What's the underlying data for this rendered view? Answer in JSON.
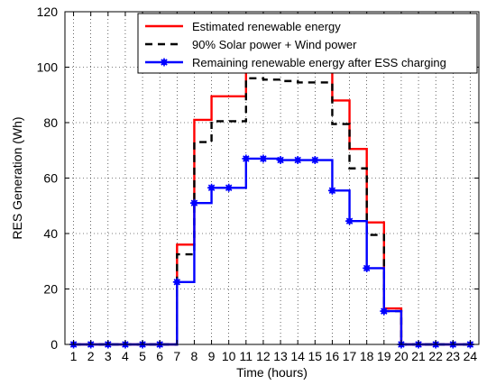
{
  "chart_data": {
    "type": "line",
    "step": "post",
    "xlabel": "Time (hours)",
    "ylabel": "RES Generation (Wh)",
    "xlim": [
      0.5,
      24.5
    ],
    "ylim": [
      0,
      120
    ],
    "x_ticks": [
      1,
      2,
      3,
      4,
      5,
      6,
      7,
      8,
      9,
      10,
      11,
      12,
      13,
      14,
      15,
      16,
      17,
      18,
      19,
      20,
      21,
      22,
      23,
      24
    ],
    "y_ticks": [
      0,
      20,
      40,
      60,
      80,
      100,
      120
    ],
    "grid": true,
    "grid_style": "dotted",
    "legend_position": "top-right",
    "x": [
      1,
      2,
      3,
      4,
      5,
      6,
      7,
      8,
      9,
      10,
      11,
      12,
      13,
      14,
      15,
      16,
      17,
      18,
      19,
      20,
      21,
      22,
      23,
      24
    ],
    "series": [
      {
        "name": "Estimated renewable energy",
        "color": "#ff0000",
        "line_style": "solid",
        "marker": "none",
        "values": [
          0,
          0,
          0,
          0,
          0,
          0,
          36,
          81,
          89.5,
          89.5,
          100,
          100,
          100,
          100,
          100,
          88,
          70.5,
          44,
          13,
          0,
          0,
          0,
          0,
          0
        ]
      },
      {
        "name": "90% Solar power + Wind power",
        "color": "#000000",
        "line_style": "dashed",
        "marker": "none",
        "values": [
          0,
          0,
          0,
          0,
          0,
          0,
          32.5,
          73,
          80.5,
          80.5,
          96,
          95.5,
          95,
          94.5,
          94.5,
          79.5,
          63.5,
          39.5,
          12,
          0,
          0,
          0,
          0,
          0
        ]
      },
      {
        "name": "Remaining renewable energy after ESS charging",
        "color": "#0000ff",
        "line_style": "solid",
        "marker": "asterisk",
        "values": [
          0,
          0,
          0,
          0,
          0,
          0,
          22.5,
          51,
          56.5,
          56.5,
          67,
          67,
          66.5,
          66.5,
          66.5,
          55.5,
          44.5,
          27.5,
          12,
          0,
          0,
          0,
          0,
          0
        ]
      }
    ]
  }
}
